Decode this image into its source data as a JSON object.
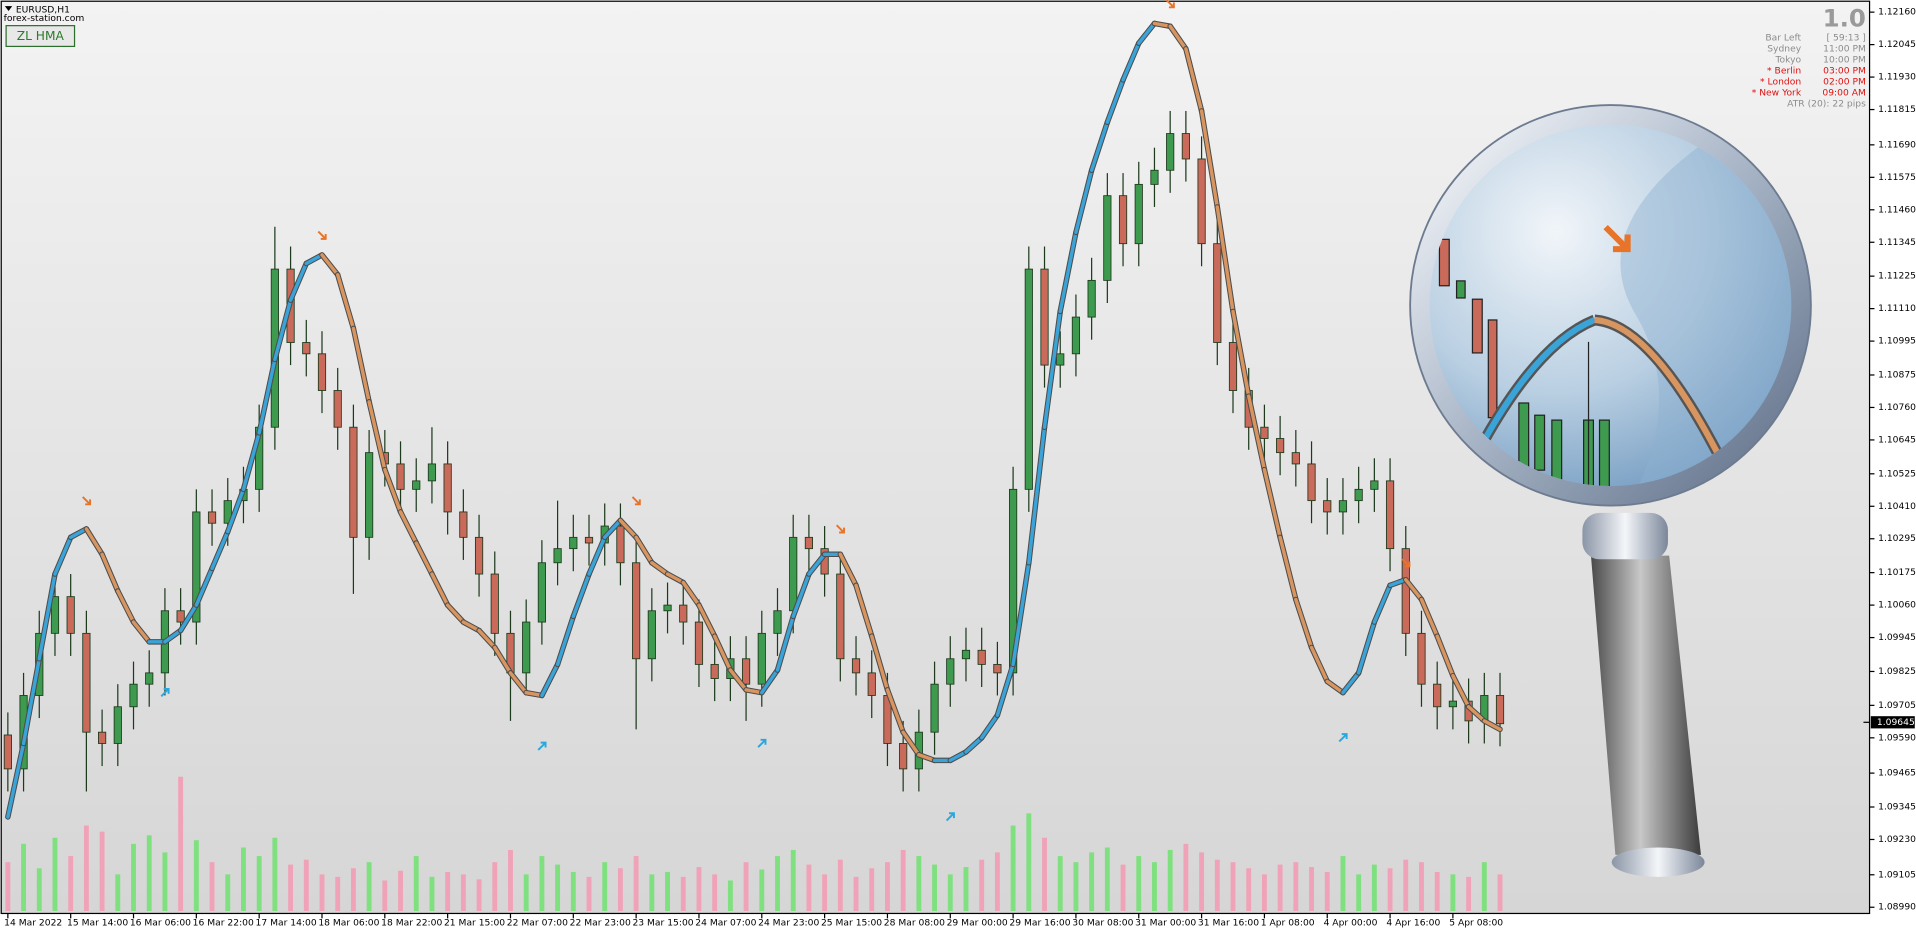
{
  "header": {
    "symbol": "EURUSD,H1",
    "source": "forex-station.com",
    "indicator_button": "ZL HMA"
  },
  "info": {
    "version": "1.0",
    "rows": [
      {
        "label": "Bar Left",
        "value": "[ 59:13 ]",
        "color": "#8c8c8c"
      },
      {
        "label": "Sydney",
        "value": "11:00 PM",
        "color": "#8c8c8c"
      },
      {
        "label": "Tokyo",
        "value": "10:00 PM",
        "color": "#8c8c8c"
      },
      {
        "label": "* Berlin",
        "value": "03:00 PM",
        "color": "#e01010"
      },
      {
        "label": "* London",
        "value": "02:00 PM",
        "color": "#e01010"
      },
      {
        "label": "* New York",
        "value": "09:00 AM",
        "color": "#e01010"
      }
    ],
    "atr": "ATR (20): 22 pips"
  },
  "chart_data": {
    "type": "candlestick",
    "categories": [
      "14 Mar 2022",
      null,
      null,
      null,
      "15 Mar 14:00",
      null,
      null,
      null,
      "16 Mar 06:00",
      null,
      null,
      null,
      "16 Mar 22:00",
      null,
      null,
      null,
      "17 Mar 14:00",
      null,
      null,
      null,
      "18 Mar 06:00",
      null,
      null,
      null,
      "18 Mar 22:00",
      null,
      null,
      null,
      "21 Mar 15:00",
      null,
      null,
      null,
      "22 Mar 07:00",
      null,
      null,
      null,
      "22 Mar 23:00",
      null,
      null,
      null,
      "23 Mar 15:00",
      null,
      null,
      null,
      "24 Mar 07:00",
      null,
      null,
      null,
      "24 Mar 23:00",
      null,
      null,
      null,
      "25 Mar 15:00",
      null,
      null,
      null,
      "28 Mar 08:00",
      null,
      null,
      null,
      "29 Mar 00:00",
      null,
      null,
      null,
      "29 Mar 16:00",
      null,
      null,
      null,
      "30 Mar 08:00",
      null,
      null,
      null,
      "31 Mar 00:00",
      null,
      null,
      null,
      "31 Mar 16:00",
      null,
      null,
      null,
      "1 Apr 08:00",
      null,
      null,
      null,
      "4 Apr 00:00",
      null,
      null,
      null,
      "4 Apr 16:00",
      null,
      null,
      null,
      "5 Apr 08:00",
      null,
      null,
      null
    ],
    "open": [
      1.096,
      1.0948,
      1.0974,
      1.0996,
      1.1009,
      1.0996,
      1.0961,
      1.0957,
      1.097,
      1.0978,
      1.0982,
      1.1004,
      1.1,
      1.1039,
      1.1035,
      1.1043,
      1.1047,
      1.1069,
      1.1125,
      1.1099,
      1.1095,
      1.1082,
      1.1069,
      1.103,
      1.106,
      1.1056,
      1.1047,
      1.105,
      1.1056,
      1.1039,
      1.103,
      1.1017,
      1.0996,
      1.0982,
      1.1,
      1.1021,
      1.1026,
      1.103,
      1.1028,
      1.1034,
      1.1021,
      1.0987,
      1.1004,
      1.1006,
      1.1,
      1.0985,
      1.098,
      1.0987,
      1.0978,
      1.0996,
      1.1004,
      1.103,
      1.1026,
      1.1017,
      1.0987,
      1.0982,
      1.0974,
      1.0957,
      1.0948,
      1.0961,
      1.0978,
      1.0987,
      1.099,
      1.0985,
      1.0982,
      1.1047,
      1.1125,
      1.1091,
      1.1095,
      1.1108,
      1.1121,
      1.1151,
      1.1134,
      1.1155,
      1.116,
      1.1173,
      1.1164,
      1.1134,
      1.1099,
      1.1082,
      1.1069,
      1.1065,
      1.106,
      1.1056,
      1.1043,
      1.1039,
      1.1043,
      1.1047,
      1.105,
      1.1026,
      1.0996,
      1.0978,
      1.097,
      1.0972,
      1.0965,
      1.0974
    ],
    "high": [
      1.0968,
      1.0982,
      1.1004,
      1.1017,
      1.1017,
      1.1004,
      1.0969,
      1.0978,
      1.0986,
      1.099,
      1.1012,
      1.1012,
      1.1047,
      1.1047,
      1.1051,
      1.1055,
      1.1077,
      1.114,
      1.1133,
      1.1107,
      1.1103,
      1.109,
      1.1077,
      1.1068,
      1.1068,
      1.1064,
      1.1058,
      1.1069,
      1.1064,
      1.1047,
      1.1038,
      1.1025,
      1.1004,
      1.1008,
      1.1029,
      1.1043,
      1.1038,
      1.1038,
      1.1042,
      1.1042,
      1.1029,
      1.1012,
      1.1014,
      1.1014,
      1.1008,
      1.0993,
      1.0995,
      1.0995,
      1.1004,
      1.1012,
      1.1038,
      1.1038,
      1.1034,
      1.1025,
      1.0995,
      1.099,
      1.0982,
      1.0965,
      1.0969,
      1.0986,
      1.0995,
      1.0998,
      1.0998,
      1.0993,
      1.1055,
      1.1133,
      1.1133,
      1.1103,
      1.1116,
      1.1129,
      1.1159,
      1.1159,
      1.1163,
      1.1168,
      1.1181,
      1.1181,
      1.1172,
      1.1142,
      1.1107,
      1.109,
      1.1077,
      1.1073,
      1.1068,
      1.1064,
      1.1051,
      1.1051,
      1.1055,
      1.1058,
      1.1058,
      1.1034,
      1.1004,
      1.0986,
      1.098,
      1.098,
      1.0982,
      1.0982
    ],
    "low": [
      1.094,
      1.094,
      1.0966,
      1.0988,
      1.0988,
      1.094,
      1.0949,
      1.0949,
      1.0962,
      1.097,
      1.0974,
      1.0992,
      1.0992,
      1.1027,
      1.1027,
      1.1035,
      1.1039,
      1.1061,
      1.1091,
      1.1087,
      1.1074,
      1.1061,
      1.101,
      1.1022,
      1.1048,
      1.1039,
      1.1039,
      1.1042,
      1.1031,
      1.1022,
      1.1009,
      1.0988,
      1.0965,
      1.0974,
      1.0992,
      1.1013,
      1.1018,
      1.102,
      1.102,
      1.1013,
      1.0962,
      1.0979,
      1.0996,
      1.0992,
      1.0977,
      1.0972,
      1.0972,
      1.0965,
      1.097,
      1.0988,
      1.0996,
      1.1018,
      1.1009,
      1.0979,
      1.0974,
      1.0966,
      1.0949,
      1.094,
      1.094,
      1.0953,
      1.097,
      1.0979,
      1.0977,
      1.0974,
      1.0974,
      1.1039,
      1.1083,
      1.1083,
      1.1087,
      1.11,
      1.1113,
      1.1126,
      1.1126,
      1.1147,
      1.1152,
      1.1156,
      1.1126,
      1.1091,
      1.1074,
      1.1061,
      1.1057,
      1.1052,
      1.1048,
      1.1035,
      1.1031,
      1.1031,
      1.1035,
      1.1039,
      1.1018,
      1.0988,
      1.097,
      1.0962,
      1.0962,
      1.0957,
      1.0957,
      1.0956
    ],
    "close": [
      1.0948,
      1.0974,
      1.0996,
      1.1009,
      1.0996,
      1.0961,
      1.0957,
      1.097,
      1.0978,
      1.0982,
      1.1004,
      1.1,
      1.1039,
      1.1035,
      1.1043,
      1.1047,
      1.1069,
      1.1125,
      1.1099,
      1.1095,
      1.1082,
      1.1069,
      1.103,
      1.106,
      1.1056,
      1.1047,
      1.105,
      1.1056,
      1.1039,
      1.103,
      1.1017,
      1.0996,
      1.0982,
      1.1,
      1.1021,
      1.1026,
      1.103,
      1.1028,
      1.1034,
      1.1021,
      1.0987,
      1.1004,
      1.1006,
      1.1,
      1.0985,
      1.098,
      1.0987,
      1.0978,
      1.0996,
      1.1004,
      1.103,
      1.1026,
      1.1017,
      1.0987,
      1.0982,
      1.0974,
      1.0957,
      1.0948,
      1.0961,
      1.0978,
      1.0987,
      1.099,
      1.0985,
      1.0982,
      1.1047,
      1.1125,
      1.1091,
      1.1095,
      1.1108,
      1.1121,
      1.1151,
      1.1134,
      1.1155,
      1.116,
      1.1173,
      1.1164,
      1.1134,
      1.1099,
      1.1082,
      1.1069,
      1.1065,
      1.106,
      1.1056,
      1.1043,
      1.1039,
      1.1043,
      1.1047,
      1.105,
      1.1026,
      1.0996,
      1.0978,
      1.097,
      1.0972,
      1.0965,
      1.0974,
      1.0964
    ],
    "up_color": "#3d9a4e",
    "down_color": "#c96a5a",
    "hma": {
      "name": "ZL HMA",
      "up_color": "#3aa3d8",
      "down_color": "#d9955f",
      "values": [
        1.0931,
        1.0957,
        1.0987,
        1.1017,
        1.103,
        1.1033,
        1.1024,
        1.1011,
        1.1,
        1.0993,
        1.0993,
        1.0997,
        1.1006,
        1.1019,
        1.1032,
        1.1047,
        1.1067,
        1.1093,
        1.1114,
        1.1127,
        1.113,
        1.1123,
        1.1104,
        1.1078,
        1.1054,
        1.1039,
        1.1028,
        1.1017,
        1.1006,
        1.1,
        1.0997,
        1.0991,
        1.0982,
        1.0975,
        1.0974,
        1.0985,
        1.1002,
        1.1017,
        1.103,
        1.1036,
        1.103,
        1.1021,
        1.1017,
        1.1014,
        1.1006,
        1.0995,
        1.0983,
        1.0976,
        1.0975,
        1.0983,
        1.1002,
        1.1017,
        1.1024,
        1.1024,
        1.1013,
        1.0995,
        1.0976,
        1.0961,
        1.0953,
        1.0951,
        1.0951,
        1.0954,
        1.0959,
        1.0967,
        1.0985,
        1.1021,
        1.1069,
        1.111,
        1.1138,
        1.116,
        1.1177,
        1.1192,
        1.1205,
        1.1212,
        1.1211,
        1.1203,
        1.1181,
        1.1147,
        1.111,
        1.108,
        1.1054,
        1.103,
        1.1008,
        1.0991,
        1.0979,
        1.0975,
        1.0982,
        1.1,
        1.1013,
        1.1015,
        1.1008,
        1.0995,
        1.0981,
        1.097,
        1.0965,
        1.0962
      ]
    },
    "volume": {
      "up_color": "#7fe07f",
      "down_color": "#f0a3b8",
      "values": [
        40,
        55,
        35,
        60,
        45,
        70,
        65,
        30,
        55,
        62,
        48,
        110,
        58,
        40,
        30,
        52,
        45,
        60,
        38,
        42,
        30,
        28,
        35,
        40,
        25,
        33,
        45,
        28,
        32,
        30,
        26,
        40,
        50,
        30,
        45,
        38,
        32,
        28,
        40,
        35,
        45,
        30,
        32,
        28,
        36,
        30,
        25,
        40,
        34,
        45,
        50,
        38,
        30,
        42,
        28,
        35,
        40,
        50,
        45,
        38,
        30,
        36,
        42,
        48,
        70,
        80,
        60,
        45,
        40,
        48,
        52,
        38,
        45,
        40,
        50,
        55,
        48,
        42,
        40,
        35,
        30,
        38,
        40,
        36,
        32,
        45,
        30,
        38,
        35,
        42,
        40,
        32,
        30,
        28,
        40,
        30
      ]
    },
    "sell": {
      "color": "#e8742a",
      "x": [
        5,
        20,
        40,
        53,
        74,
        89
      ],
      "values": [
        1.1043,
        1.1137,
        1.1043,
        1.1033,
        1.1219,
        1.1021
      ]
    },
    "buy": {
      "color": "#29a8e0",
      "x": [
        10,
        34,
        48,
        60,
        85
      ],
      "values": [
        1.0975,
        1.0956,
        1.0957,
        1.0931,
        1.0959
      ]
    },
    "last_price": 1.09645,
    "ylim": [
      1.08968,
      1.1219
    ],
    "yticks": [
      {
        "value": 1.1216,
        "label": "1.12160"
      },
      {
        "value": 1.12045,
        "label": "1.12045"
      },
      {
        "value": 1.1193,
        "label": "1.11930"
      },
      {
        "value": 1.11815,
        "label": "1.11815"
      },
      {
        "value": 1.1169,
        "label": "1.11690"
      },
      {
        "value": 1.11575,
        "label": "1.11575"
      },
      {
        "value": 1.1146,
        "label": "1.11460"
      },
      {
        "value": 1.11345,
        "label": "1.11345"
      },
      {
        "value": 1.11225,
        "label": "1.11225"
      },
      {
        "value": 1.1111,
        "label": "1.11110"
      },
      {
        "value": 1.10995,
        "label": "1.10995"
      },
      {
        "value": 1.10875,
        "label": "1.10875"
      },
      {
        "value": 1.1076,
        "label": "1.10760"
      },
      {
        "value": 1.10645,
        "label": "1.10645"
      },
      {
        "value": 1.10525,
        "label": "1.10525"
      },
      {
        "value": 1.1041,
        "label": "1.10410"
      },
      {
        "value": 1.10295,
        "label": "1.10295"
      },
      {
        "value": 1.10175,
        "label": "1.10175"
      },
      {
        "value": 1.1006,
        "label": "1.10060"
      },
      {
        "value": 1.09945,
        "label": "1.09945"
      },
      {
        "value": 1.09825,
        "label": "1.09825"
      },
      {
        "value": 1.09705,
        "label": "1.09705"
      },
      {
        "value": 1.0959,
        "label": "1.09590"
      },
      {
        "value": 1.09465,
        "label": "1.09465"
      },
      {
        "value": 1.09345,
        "label": "1.09345"
      },
      {
        "value": 1.0923,
        "label": "1.09230"
      },
      {
        "value": 1.09105,
        "label": "1.09105"
      },
      {
        "value": 1.0899,
        "label": "1.08990"
      }
    ],
    "grid": false
  }
}
